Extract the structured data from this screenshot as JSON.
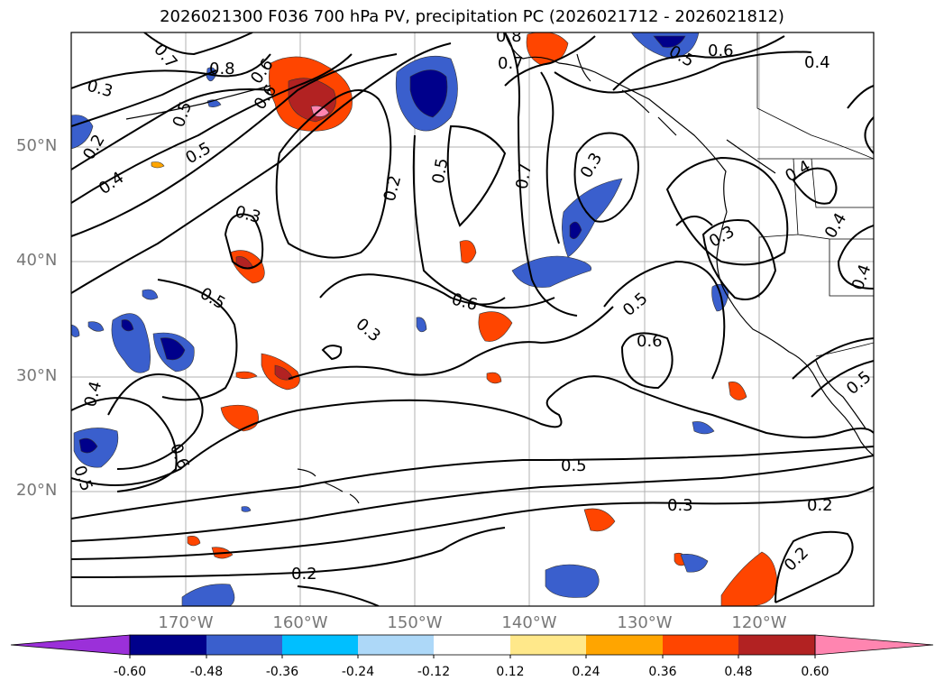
{
  "title": "2026021300 F036 700 hPa PV, precipitation PC (2026021712 - 2026021812)",
  "lat_labels": [
    "50°N",
    "40°N",
    "30°N",
    "20°N"
  ],
  "lon_labels": [
    "170°W",
    "160°W",
    "150°W",
    "140°W",
    "130°W",
    "120°W"
  ],
  "colorbar": {
    "ticks": [
      "-0.60",
      "-0.48",
      "-0.36",
      "-0.24",
      "-0.12",
      "0.12",
      "0.24",
      "0.36",
      "0.48",
      "0.60"
    ],
    "colors": [
      "#9b30d9",
      "#00008b",
      "#3a5fcd",
      "#00bfff",
      "#add8f8",
      "#ffffff",
      "#ffe88a",
      "#ffa500",
      "#ff4500",
      "#b22222",
      "#ff85b0"
    ]
  },
  "contour_labels": [
    "0.7",
    "0.8",
    "0.6",
    "0.3",
    "0.5",
    "0.4",
    "0.2",
    "0.8",
    "0.5",
    "0.6",
    "0.4",
    "0.2",
    "0.5",
    "0.3",
    "0.7",
    "0.3",
    "0.5",
    "0.6",
    "0.3",
    "0.4",
    "0.5",
    "0.6",
    "0.3",
    "0.2",
    "0.2",
    "0.5",
    "0.4",
    "0.5",
    "0.4",
    "0.6",
    "0.5",
    "0.4",
    "0.7",
    "0.5",
    "0.6"
  ]
}
